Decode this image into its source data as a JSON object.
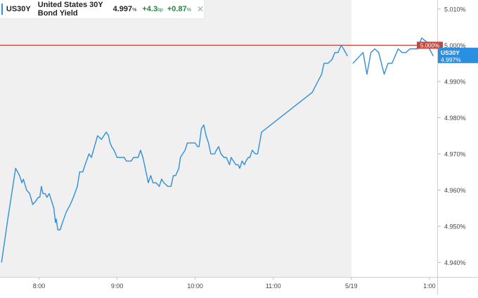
{
  "header": {
    "symbol": "US30Y",
    "name": "United States 30Y Bond Yield",
    "last": "4.997",
    "last_unit": "%",
    "change": "+4.3",
    "change_unit": "bp",
    "change_pct": "+0.87",
    "change_pct_unit": "%",
    "close_glyph": "✕"
  },
  "colors": {
    "line": "#2f8fdc",
    "session_shade": "#f0f0f0",
    "ref_line": "#c8453b",
    "ref_tag_bg": "#c8453b",
    "last_tag_bg": "#2a8fe0",
    "positive": "#1a8a3a"
  },
  "price_tag": {
    "symbol": "US30Y",
    "value": "4.997%"
  },
  "ref_tag": {
    "value": "5.000%"
  },
  "chart_data": {
    "type": "line",
    "title": "United States 30Y Bond Yield",
    "xlabel": "",
    "ylabel": "",
    "ylim": [
      4.936,
      5.0125
    ],
    "yticks": [
      4.94,
      4.95,
      4.96,
      4.97,
      4.98,
      4.99,
      5.0,
      5.01
    ],
    "ytick_labels": [
      "4.940%",
      "4.950%",
      "4.960%",
      "4.970%",
      "4.980%",
      "4.990%",
      "5.000%",
      "5.010%"
    ],
    "xticks": [
      {
        "label": "8:00",
        "t": 8.0
      },
      {
        "label": "9:00",
        "t": 9.0
      },
      {
        "label": "10:00",
        "t": 10.0
      },
      {
        "label": "11:00",
        "t": 11.0
      },
      {
        "label": "5/19",
        "t": 12.0
      },
      {
        "label": "1:00",
        "t": 13.0
      }
    ],
    "reference_line": 5.0,
    "grid": false,
    "legend": "none",
    "previous_session_end": 12.0,
    "series": [
      {
        "segments": [
          [
            [
              7.52,
              4.94
            ],
            [
              7.6,
              4.952
            ],
            [
              7.7,
              4.966
            ],
            [
              7.75,
              4.964
            ],
            [
              7.78,
              4.962
            ],
            [
              7.8,
              4.963
            ],
            [
              7.84,
              4.96
            ],
            [
              7.88,
              4.959
            ],
            [
              7.92,
              4.956
            ],
            [
              7.96,
              4.957
            ],
            [
              7.99,
              4.958
            ],
            [
              8.01,
              4.958
            ],
            [
              8.03,
              4.961
            ],
            [
              8.05,
              4.959
            ],
            [
              8.08,
              4.959
            ],
            [
              8.1,
              4.958
            ],
            [
              8.13,
              4.959
            ],
            [
              8.16,
              4.957
            ],
            [
              8.19,
              4.955
            ],
            [
              8.21,
              4.951
            ],
            [
              8.22,
              4.952
            ],
            [
              8.24,
              4.949
            ],
            [
              8.27,
              4.949
            ],
            [
              8.3,
              4.951
            ],
            [
              8.35,
              4.954
            ],
            [
              8.4,
              4.956
            ],
            [
              8.44,
              4.958
            ],
            [
              8.49,
              4.961
            ],
            [
              8.52,
              4.965
            ],
            [
              8.56,
              4.965
            ],
            [
              8.59,
              4.967
            ],
            [
              8.64,
              4.97
            ],
            [
              8.67,
              4.969
            ],
            [
              8.71,
              4.972
            ],
            [
              8.75,
              4.975
            ],
            [
              8.8,
              4.974
            ],
            [
              8.83,
              4.975
            ],
            [
              8.86,
              4.976
            ],
            [
              8.89,
              4.975
            ],
            [
              8.91,
              4.973
            ],
            [
              8.93,
              4.972
            ],
            [
              8.96,
              4.971
            ],
            [
              9.0,
              4.969
            ],
            [
              9.05,
              4.969
            ],
            [
              9.09,
              4.969
            ],
            [
              9.12,
              4.968
            ],
            [
              9.15,
              4.968
            ],
            [
              9.18,
              4.968
            ],
            [
              9.21,
              4.969
            ],
            [
              9.24,
              4.969
            ],
            [
              9.27,
              4.969
            ],
            [
              9.3,
              4.971
            ],
            [
              9.33,
              4.969
            ],
            [
              9.36,
              4.966
            ],
            [
              9.4,
              4.962
            ],
            [
              9.43,
              4.964
            ],
            [
              9.46,
              4.962
            ],
            [
              9.5,
              4.962
            ],
            [
              9.54,
              4.961
            ],
            [
              9.57,
              4.963
            ],
            [
              9.6,
              4.962
            ],
            [
              9.65,
              4.961
            ],
            [
              9.69,
              4.961
            ],
            [
              9.72,
              4.964
            ],
            [
              9.75,
              4.964
            ],
            [
              9.79,
              4.966
            ],
            [
              9.81,
              4.969
            ],
            [
              9.84,
              4.97
            ],
            [
              9.87,
              4.971
            ],
            [
              9.9,
              4.973
            ],
            [
              9.95,
              4.973
            ],
            [
              10.0,
              4.973
            ],
            [
              10.03,
              4.972
            ],
            [
              10.05,
              4.972
            ],
            [
              10.08,
              4.977
            ],
            [
              10.11,
              4.978
            ],
            [
              10.14,
              4.975
            ],
            [
              10.17,
              4.973
            ],
            [
              10.2,
              4.97
            ],
            [
              10.25,
              4.97
            ],
            [
              10.27,
              4.971
            ],
            [
              10.3,
              4.972
            ],
            [
              10.33,
              4.97
            ],
            [
              10.37,
              4.969
            ],
            [
              10.4,
              4.969
            ],
            [
              10.42,
              4.968
            ],
            [
              10.44,
              4.967
            ],
            [
              10.46,
              4.969
            ],
            [
              10.49,
              4.968
            ],
            [
              10.52,
              4.967
            ],
            [
              10.55,
              4.967
            ],
            [
              10.57,
              4.966
            ],
            [
              10.6,
              4.968
            ],
            [
              10.63,
              4.967
            ],
            [
              10.65,
              4.968
            ],
            [
              10.68,
              4.969
            ],
            [
              10.7,
              4.969
            ],
            [
              10.73,
              4.971
            ],
            [
              10.77,
              4.97
            ],
            [
              10.8,
              4.97
            ],
            [
              10.85,
              4.976
            ],
            [
              11.5,
              4.987
            ],
            [
              11.57,
              4.99
            ],
            [
              11.62,
              4.992
            ],
            [
              11.65,
              4.995
            ],
            [
              11.7,
              4.995
            ],
            [
              11.75,
              4.996
            ],
            [
              11.79,
              4.998
            ],
            [
              11.83,
              4.998
            ],
            [
              11.87,
              5.0
            ],
            [
              11.9,
              4.999
            ],
            [
              11.95,
              4.997
            ]
          ],
          [
            [
              12.02,
              4.995
            ],
            [
              12.15,
              4.998
            ],
            [
              12.2,
              4.992
            ],
            [
              12.25,
              4.998
            ],
            [
              12.3,
              4.999
            ],
            [
              12.35,
              4.998
            ],
            [
              12.42,
              4.992
            ],
            [
              12.47,
              4.995
            ],
            [
              12.52,
              4.995
            ],
            [
              12.56,
              4.997
            ],
            [
              12.6,
              4.999
            ],
            [
              12.65,
              4.998
            ],
            [
              12.7,
              4.998
            ],
            [
              12.75,
              4.999
            ],
            [
              12.8,
              4.999
            ],
            [
              12.85,
              4.999
            ],
            [
              12.9,
              5.002
            ],
            [
              12.96,
              5.001
            ],
            [
              13.0,
              4.999
            ],
            [
              13.05,
              4.997
            ]
          ]
        ]
      }
    ]
  }
}
